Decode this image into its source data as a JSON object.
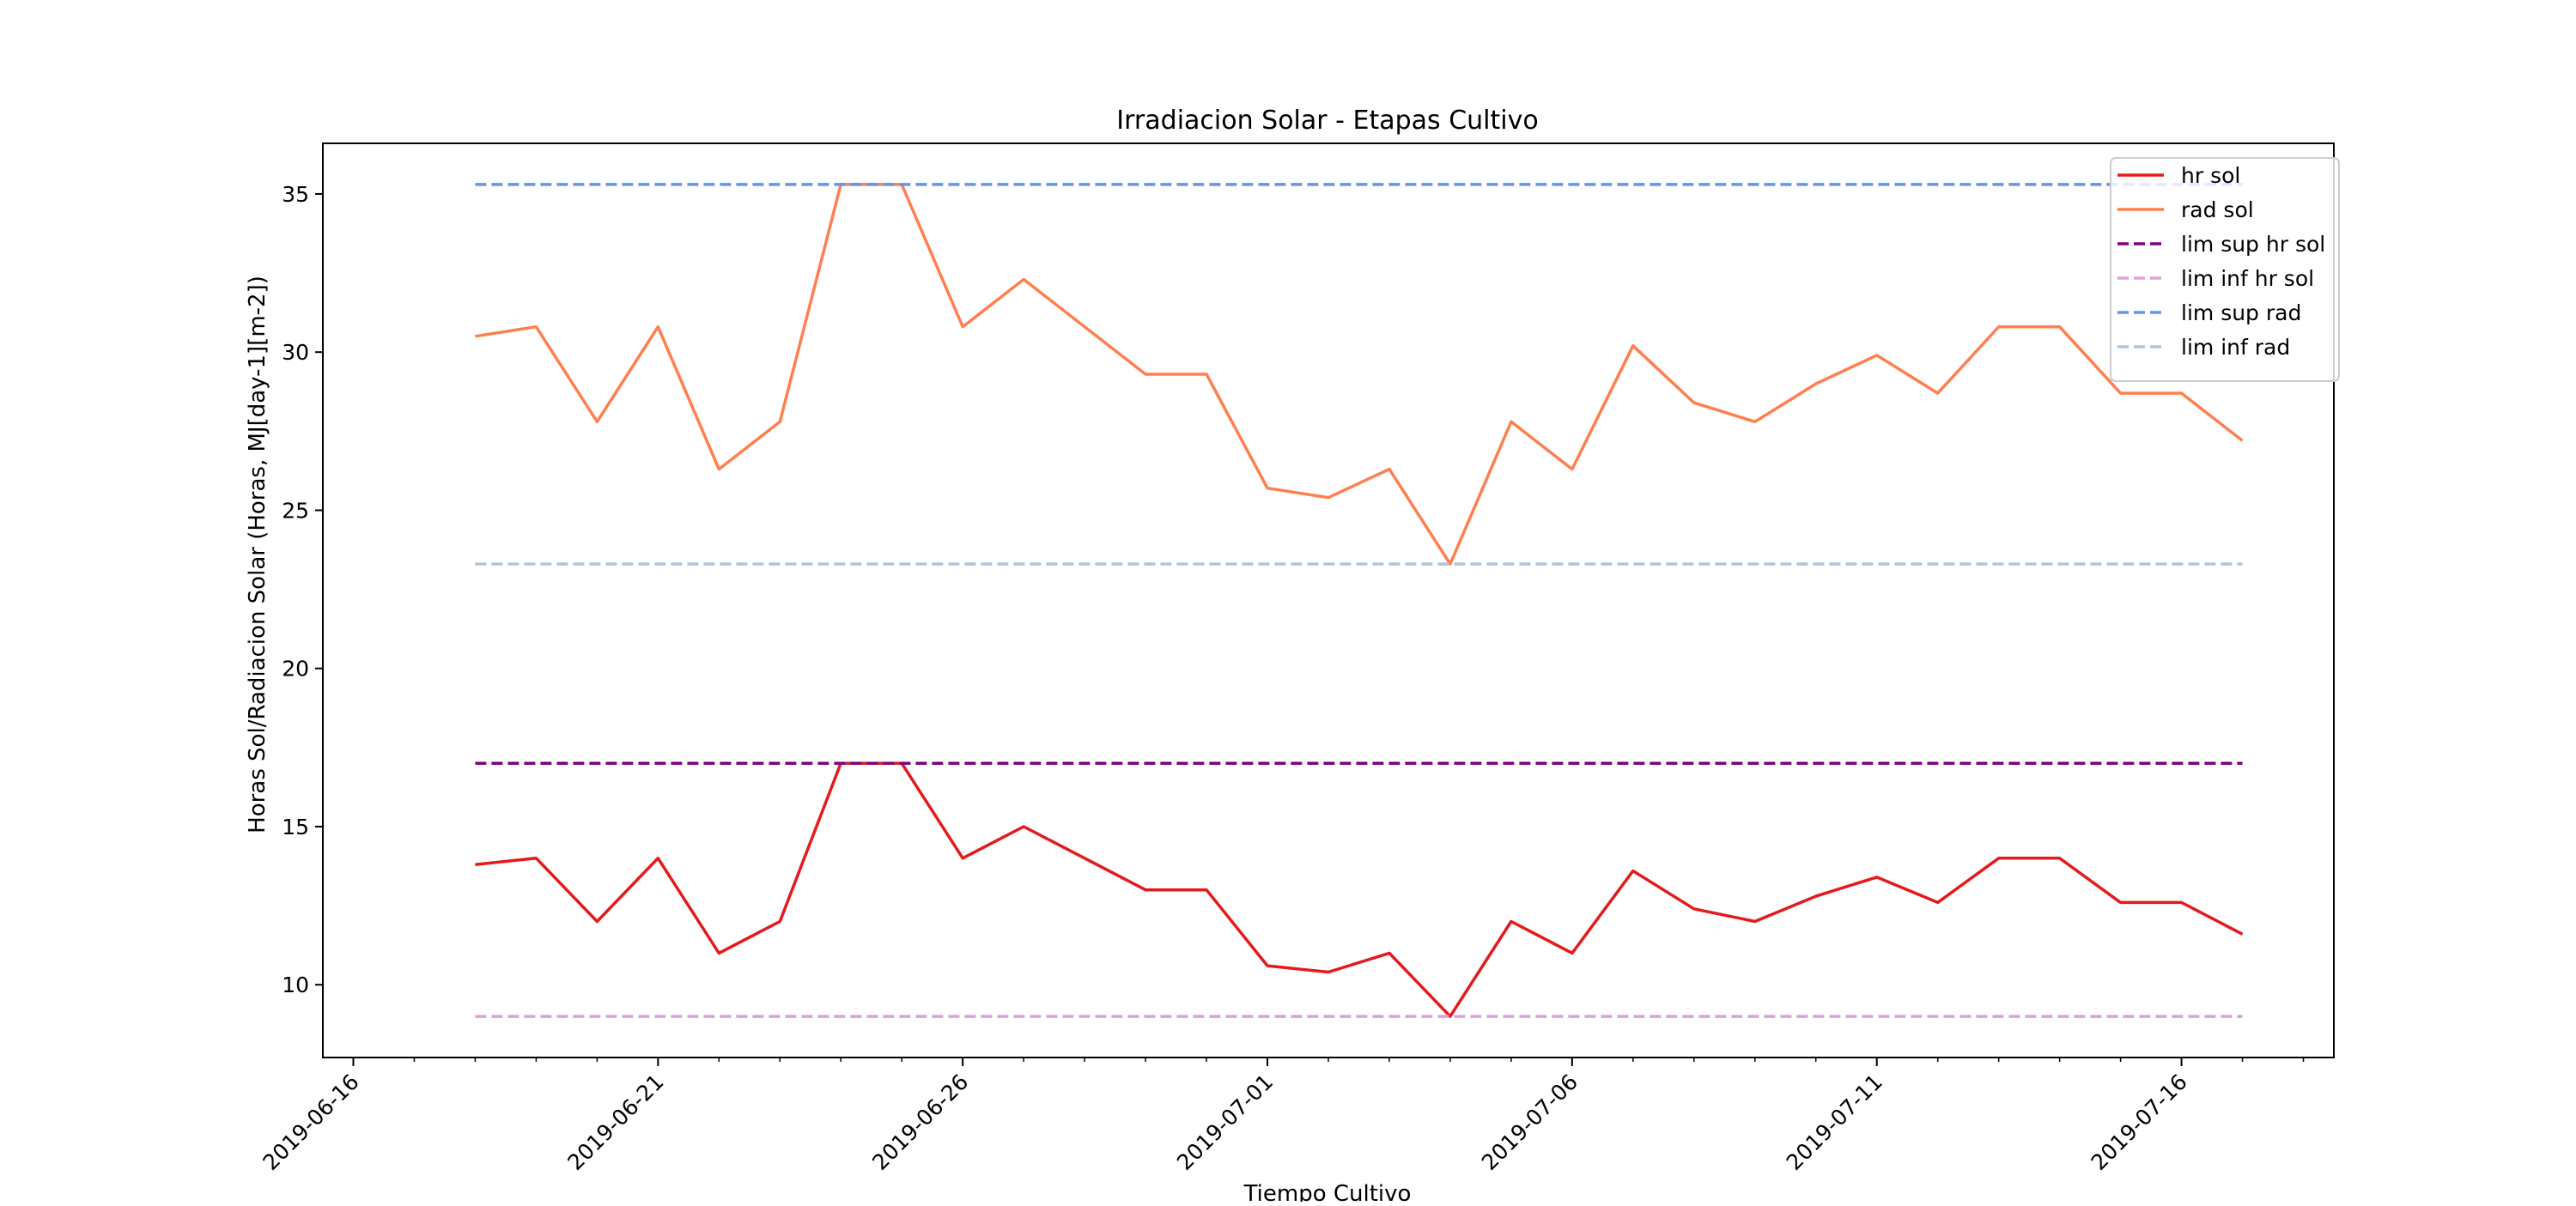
{
  "chart_data": {
    "type": "line",
    "title": "Irradiacion Solar - Etapas Cultivo",
    "xlabel": "Tiempo Cultivo",
    "ylabel": "Horas Sol/Radiacion Solar (Horas, MJ[day-1][m-2])",
    "x": [
      "2019-06-18",
      "2019-06-19",
      "2019-06-20",
      "2019-06-21",
      "2019-06-22",
      "2019-06-23",
      "2019-06-24",
      "2019-06-25",
      "2019-06-26",
      "2019-06-27",
      "2019-06-28",
      "2019-06-29",
      "2019-06-30",
      "2019-07-01",
      "2019-07-02",
      "2019-07-03",
      "2019-07-04",
      "2019-07-05",
      "2019-07-06",
      "2019-07-07",
      "2019-07-08",
      "2019-07-09",
      "2019-07-10",
      "2019-07-11",
      "2019-07-12",
      "2019-07-13",
      "2019-07-14",
      "2019-07-15",
      "2019-07-16",
      "2019-07-17"
    ],
    "xlim": [
      "2019-06-15T12:00",
      "2019-07-18T12:00"
    ],
    "ylim": [
      7.7,
      36.6
    ],
    "x_ticks": [
      "2019-06-16",
      "2019-06-21",
      "2019-06-26",
      "2019-07-01",
      "2019-07-06",
      "2019-07-11",
      "2019-07-16"
    ],
    "y_ticks": [
      10,
      15,
      20,
      25,
      30,
      35
    ],
    "series": [
      {
        "name": "hr sol",
        "color": "#e41a1c",
        "style": "solid",
        "values": [
          13.8,
          14.0,
          12.0,
          14.0,
          11.0,
          12.0,
          17.0,
          17.0,
          14.0,
          15.0,
          14.0,
          13.0,
          13.0,
          10.6,
          10.4,
          11.0,
          9.0,
          12.0,
          11.0,
          13.6,
          12.4,
          12.0,
          12.8,
          13.4,
          12.6,
          14.0,
          14.0,
          12.6,
          12.6,
          11.6
        ]
      },
      {
        "name": "rad sol",
        "color": "#ff7f50",
        "style": "solid",
        "values": [
          30.5,
          30.8,
          27.8,
          30.8,
          26.3,
          27.8,
          35.3,
          35.3,
          30.8,
          32.3,
          30.8,
          29.3,
          29.3,
          25.7,
          25.4,
          26.3,
          23.3,
          27.8,
          26.3,
          30.2,
          28.4,
          27.8,
          29.0,
          29.9,
          28.7,
          30.8,
          30.8,
          28.7,
          28.7,
          27.2
        ]
      },
      {
        "name": "lim sup hr sol",
        "color": "#800080",
        "style": "dashed",
        "constant": 17.0
      },
      {
        "name": "lim inf hr sol",
        "color": "#dda0dd",
        "style": "dashed",
        "constant": 9.0
      },
      {
        "name": "lim sup rad",
        "color": "#6495ed",
        "style": "dashed",
        "constant": 35.3
      },
      {
        "name": "lim inf rad",
        "color": "#b0c4de",
        "style": "dashed",
        "constant": 23.3
      }
    ],
    "legend_position": "top-right",
    "grid": false
  }
}
